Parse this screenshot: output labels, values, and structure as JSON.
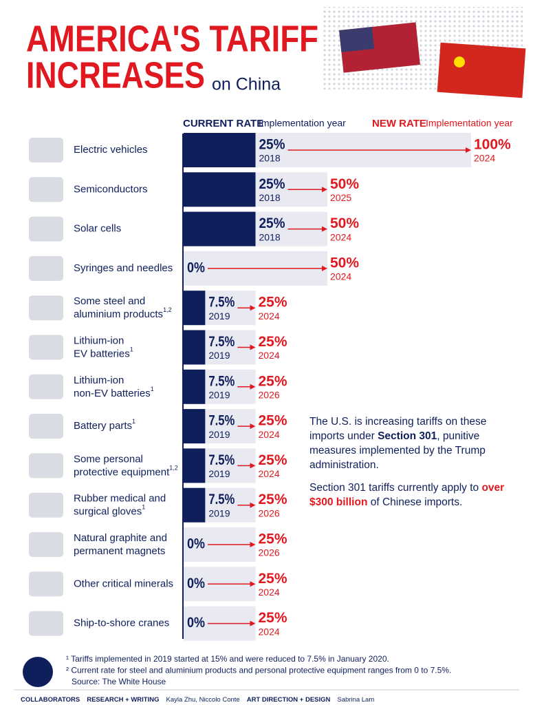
{
  "chart_data": {
    "type": "bar",
    "orientation": "horizontal",
    "title_line1": "AMERICA'S TARIFF",
    "title_line2": "INCREASES",
    "title_suffix": "on China",
    "header_current": "CURRENT RATE",
    "header_current_sub": "Implementation year",
    "header_new": "NEW RATE",
    "header_new_sub": "Implementation year",
    "categories": [
      "Electric vehicles",
      "Semiconductors",
      "Solar cells",
      "Syringes and needles",
      "Some steel and aluminium products",
      "Lithium-ion EV batteries",
      "Lithium-ion non-EV batteries",
      "Battery parts",
      "Some personal protective equipment",
      "Rubber medical and surgical gloves",
      "Natural graphite and permanent magnets",
      "Other critical minerals",
      "Ship-to-shore cranes"
    ],
    "category_notes": [
      null,
      null,
      null,
      null,
      "1,2",
      "1",
      "1",
      "1",
      "1,2",
      "1",
      null,
      null,
      null
    ],
    "series": [
      {
        "name": "CURRENT RATE",
        "color": "#0f1f5c",
        "values": [
          25,
          25,
          25,
          0,
          7.5,
          7.5,
          7.5,
          7.5,
          7.5,
          7.5,
          0,
          0,
          0
        ],
        "value_labels": [
          "25%",
          "25%",
          "25%",
          "0%",
          "7.5%",
          "7.5%",
          "7.5%",
          "7.5%",
          "7.5%",
          "7.5%",
          "0%",
          "0%",
          "0%"
        ],
        "years": [
          "2018",
          "2018",
          "2018",
          null,
          "2019",
          "2019",
          "2019",
          "2019",
          "2019",
          "2019",
          null,
          null,
          null
        ]
      },
      {
        "name": "NEW RATE",
        "color": "#e8e9f1",
        "label_color": "#e0181f",
        "values": [
          100,
          50,
          50,
          50,
          25,
          25,
          25,
          25,
          25,
          25,
          25,
          25,
          25
        ],
        "value_labels": [
          "100%",
          "50%",
          "50%",
          "50%",
          "25%",
          "25%",
          "25%",
          "25%",
          "25%",
          "25%",
          "25%",
          "25%",
          "25%"
        ],
        "years": [
          "2024",
          "2025",
          "2024",
          "2024",
          "2024",
          "2024",
          "2026",
          "2024",
          "2024",
          "2026",
          "2026",
          "2024",
          "2024"
        ]
      }
    ],
    "xlim": [
      0,
      100
    ],
    "note": {
      "p1_a": "The U.S. is increasing tariffs on these imports under ",
      "p1_b": "Section 301",
      "p1_c": ", punitive measures implemented by the Trump administration.",
      "p2_a": "Section 301 tariffs currently apply to ",
      "p2_b": "over $300 billion",
      "p2_c": " of Chinese imports."
    },
    "footnotes": [
      "¹ Tariffs implemented in 2019 started at 15% and were reduced to 7.5% in January 2020.",
      "² Current rate for steel and aluminium products and personal protective equipment ranges from 0 to 7.5%.",
      "Source: The White House"
    ],
    "credits": {
      "label": "COLLABORATORS",
      "research": "RESEARCH + WRITING",
      "research_names": "Kayla Zhu, Niccolo Conte",
      "art": "ART DIRECTION + DESIGN",
      "art_names": "Sabrina Lam"
    }
  }
}
